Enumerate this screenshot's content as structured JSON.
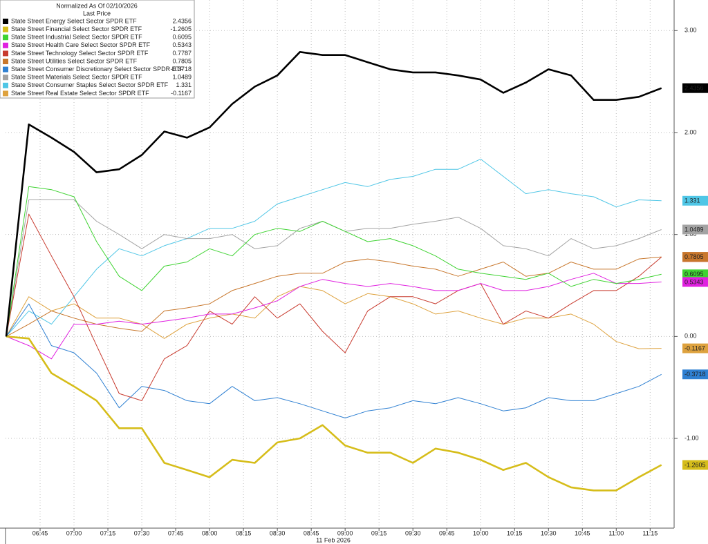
{
  "chart_data": {
    "type": "line",
    "title": "Normalized As Of 02/10/2026",
    "subtitle": "Last Price",
    "x_label": "11 Feb 2026",
    "x": [
      "06:30",
      "06:40",
      "06:50",
      "07:00",
      "07:10",
      "07:20",
      "07:30",
      "07:40",
      "07:50",
      "08:00",
      "08:10",
      "08:20",
      "08:30",
      "08:40",
      "08:50",
      "09:00",
      "09:10",
      "09:20",
      "09:30",
      "09:40",
      "09:50",
      "10:00",
      "10:10",
      "10:20",
      "10:30",
      "10:40",
      "10:50",
      "11:00",
      "11:10",
      "11:20"
    ],
    "xlim": [
      "06:30",
      "11:25"
    ],
    "xticks": [
      "06:45",
      "07:00",
      "07:15",
      "07:30",
      "07:45",
      "08:00",
      "08:15",
      "08:30",
      "08:45",
      "09:00",
      "09:15",
      "09:30",
      "09:45",
      "10:00",
      "10:15",
      "10:30",
      "10:45",
      "11:00",
      "11:15"
    ],
    "ylim": [
      -1.88,
      3.3
    ],
    "yticks": [
      {
        "value": 3,
        "label": "3.00"
      },
      {
        "value": 2,
        "label": "2.00"
      },
      {
        "value": 1,
        "label": "1.00"
      },
      {
        "value": 0,
        "label": "0.00"
      },
      {
        "value": -1,
        "label": "-1.00"
      }
    ],
    "grid": true,
    "legend": "top-left",
    "series": [
      {
        "name": "State Street Energy Select Sector SPDR ETF",
        "color": "#000000",
        "values": [
          0,
          2.08,
          1.95,
          1.81,
          1.61,
          1.64,
          1.78,
          2.01,
          1.95,
          2.05,
          2.28,
          2.45,
          2.56,
          2.79,
          2.76,
          2.76,
          2.69,
          2.62,
          2.59,
          2.59,
          2.56,
          2.52,
          2.39,
          2.49,
          2.62,
          2.56,
          2.32,
          2.32,
          2.35,
          2.4356
        ]
      },
      {
        "name": "State Street Financial Select Sector SPDR ETF",
        "color": "#d6bd1a",
        "values": [
          0,
          -0.02,
          -0.36,
          -0.49,
          -0.63,
          -0.9,
          -0.9,
          -1.24,
          -1.31,
          -1.38,
          -1.21,
          -1.24,
          -1.04,
          -1.0,
          -0.87,
          -1.07,
          -1.14,
          -1.14,
          -1.24,
          -1.1,
          -1.14,
          -1.21,
          -1.31,
          -1.24,
          -1.38,
          -1.48,
          -1.51,
          -1.51,
          -1.38,
          -1.2605
        ]
      },
      {
        "name": "State Street Industrial Select Sector SPDR ETF",
        "color": "#3fd332",
        "values": [
          0,
          1.47,
          1.44,
          1.37,
          0.93,
          0.59,
          0.45,
          0.69,
          0.73,
          0.86,
          0.79,
          1.0,
          1.06,
          1.03,
          1.13,
          1.03,
          0.93,
          0.96,
          0.89,
          0.79,
          0.66,
          0.62,
          0.59,
          0.56,
          0.62,
          0.49,
          0.56,
          0.52,
          0.56,
          0.6095
        ]
      },
      {
        "name": "State Street Health Care Select Sector SPDR ETF",
        "color": "#e021e0",
        "values": [
          0,
          -0.09,
          -0.22,
          0.12,
          0.12,
          0.15,
          0.12,
          0.15,
          0.18,
          0.22,
          0.22,
          0.28,
          0.35,
          0.49,
          0.56,
          0.52,
          0.49,
          0.52,
          0.49,
          0.45,
          0.45,
          0.52,
          0.45,
          0.45,
          0.49,
          0.56,
          0.62,
          0.52,
          0.52,
          0.5343
        ]
      },
      {
        "name": "State Street Technology Select Sector SPDR ETF",
        "color": "#c83a2e",
        "values": [
          0,
          1.2,
          0.79,
          0.39,
          -0.09,
          -0.56,
          -0.63,
          -0.22,
          -0.09,
          0.25,
          0.12,
          0.39,
          0.18,
          0.32,
          0.05,
          -0.16,
          0.25,
          0.39,
          0.39,
          0.32,
          0.45,
          0.52,
          0.12,
          0.25,
          0.18,
          0.32,
          0.45,
          0.45,
          0.59,
          0.7787
        ]
      },
      {
        "name": "State Street Utilities Select Sector SPDR ETF",
        "color": "#c8772c",
        "values": [
          0,
          0.12,
          0.25,
          0.18,
          0.12,
          0.08,
          0.05,
          0.25,
          0.28,
          0.32,
          0.45,
          0.52,
          0.59,
          0.62,
          0.62,
          0.73,
          0.76,
          0.73,
          0.69,
          0.66,
          0.59,
          0.66,
          0.73,
          0.59,
          0.62,
          0.73,
          0.66,
          0.66,
          0.76,
          0.7805
        ]
      },
      {
        "name": "State Street Consumer Discretionary Select Sector SPDR ETF",
        "color": "#2f80d2",
        "values": [
          0,
          0.32,
          -0.09,
          -0.16,
          -0.36,
          -0.7,
          -0.49,
          -0.53,
          -0.63,
          -0.66,
          -0.49,
          -0.63,
          -0.6,
          -0.66,
          -0.73,
          -0.8,
          -0.73,
          -0.7,
          -0.63,
          -0.66,
          -0.6,
          -0.66,
          -0.73,
          -0.7,
          -0.6,
          -0.63,
          -0.63,
          -0.56,
          -0.49,
          -0.3718
        ]
      },
      {
        "name": "State Street Materials Select Sector SPDR ETF",
        "color": "#a3a3a3",
        "values": [
          0,
          1.34,
          1.34,
          1.34,
          1.13,
          1.0,
          0.86,
          1.0,
          0.96,
          0.96,
          1.0,
          0.86,
          0.89,
          1.06,
          1.13,
          1.03,
          1.06,
          1.06,
          1.1,
          1.13,
          1.17,
          1.06,
          0.89,
          0.86,
          0.79,
          0.96,
          0.86,
          0.89,
          0.96,
          1.0489
        ]
      },
      {
        "name": "State Street Consumer Staples Select Sector SPDR ETF",
        "color": "#4fc6e6",
        "values": [
          0,
          0.25,
          0.12,
          0.39,
          0.66,
          0.86,
          0.79,
          0.89,
          0.96,
          1.06,
          1.06,
          1.13,
          1.3,
          1.37,
          1.44,
          1.51,
          1.47,
          1.54,
          1.57,
          1.64,
          1.64,
          1.74,
          1.57,
          1.4,
          1.44,
          1.4,
          1.37,
          1.27,
          1.34,
          1.331
        ]
      },
      {
        "name": "State Street Real Estate Select Sector SPDR ETF",
        "color": "#dea23e",
        "values": [
          0,
          0.39,
          0.25,
          0.32,
          0.18,
          0.18,
          0.12,
          -0.02,
          0.12,
          0.18,
          0.22,
          0.18,
          0.39,
          0.49,
          0.45,
          0.32,
          0.42,
          0.39,
          0.32,
          0.22,
          0.25,
          0.18,
          0.12,
          0.18,
          0.18,
          0.22,
          0.12,
          -0.05,
          -0.12,
          -0.1167
        ]
      }
    ]
  }
}
